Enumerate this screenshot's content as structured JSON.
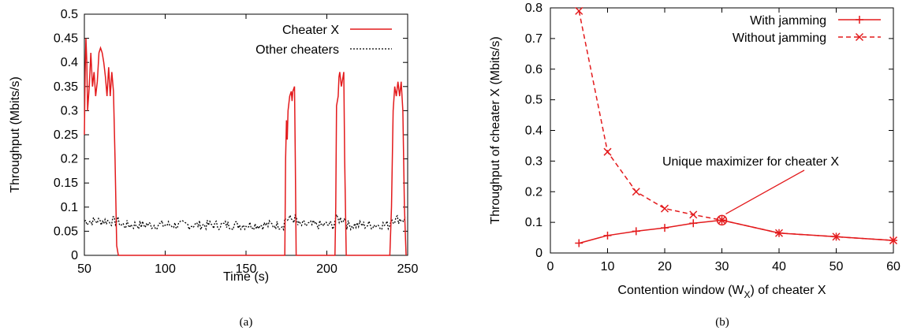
{
  "chart_data": [
    {
      "type": "line",
      "caption": "(a)",
      "xlabel": "Time (s)",
      "ylabel": "Throughput (Mbits/s)",
      "xlim": [
        50,
        250
      ],
      "ylim": [
        0,
        0.5
      ],
      "xticks": [
        "50",
        "100",
        "150",
        "200",
        "250"
      ],
      "yticks": [
        "0",
        "0.05",
        "0.1",
        "0.15",
        "0.2",
        "0.25",
        "0.3",
        "0.35",
        "0.4",
        "0.45",
        "0.5"
      ],
      "legend_position": "top-right",
      "series": [
        {
          "name": "Cheater X",
          "color": "#e31a1c",
          "style": "solid",
          "points": [
            [
              50,
              0.25
            ],
            [
              50.5,
              0.38
            ],
            [
              51,
              0.45
            ],
            [
              51.5,
              0.4
            ],
            [
              52,
              0.3
            ],
            [
              53,
              0.35
            ],
            [
              54,
              0.42
            ],
            [
              55,
              0.35
            ],
            [
              56,
              0.38
            ],
            [
              57,
              0.33
            ],
            [
              58,
              0.36
            ],
            [
              59,
              0.42
            ],
            [
              60,
              0.43
            ],
            [
              61,
              0.42
            ],
            [
              62,
              0.4
            ],
            [
              63,
              0.37
            ],
            [
              64,
              0.33
            ],
            [
              65,
              0.39
            ],
            [
              66,
              0.33
            ],
            [
              67,
              0.38
            ],
            [
              68,
              0.34
            ],
            [
              69,
              0.2
            ],
            [
              70,
              0.02
            ],
            [
              71,
              0
            ],
            [
              174,
              0
            ],
            [
              174.5,
              0.2
            ],
            [
              175,
              0.28
            ],
            [
              175.5,
              0.24
            ],
            [
              176,
              0.3
            ],
            [
              177,
              0.33
            ],
            [
              178,
              0.34
            ],
            [
              178.5,
              0.32
            ],
            [
              179,
              0.34
            ],
            [
              180,
              0.35
            ],
            [
              180.5,
              0.2
            ],
            [
              181,
              0
            ],
            [
              205,
              0
            ],
            [
              205.5,
              0.1
            ],
            [
              206,
              0.31
            ],
            [
              207,
              0.33
            ],
            [
              207.5,
              0.37
            ],
            [
              208,
              0.38
            ],
            [
              209,
              0.35
            ],
            [
              210,
              0.37
            ],
            [
              210.5,
              0.38
            ],
            [
              211,
              0.2
            ],
            [
              212,
              0
            ],
            [
              239,
              0
            ],
            [
              240,
              0.1
            ],
            [
              241,
              0.3
            ],
            [
              242,
              0.35
            ],
            [
              243,
              0.33
            ],
            [
              244,
              0.36
            ],
            [
              245,
              0.33
            ],
            [
              246,
              0.36
            ],
            [
              247,
              0.3
            ],
            [
              247.5,
              0.2
            ],
            [
              248,
              0.1
            ],
            [
              249,
              0
            ]
          ]
        },
        {
          "name": "Other cheaters",
          "color": "#000000",
          "style": "dotted",
          "mean": 0.063,
          "x_start": 50,
          "x_end": 249
        }
      ]
    },
    {
      "type": "line",
      "caption": "(b)",
      "xlabel": "Contention window (W_X) of cheater X",
      "xlabel_main": "Contention window (W",
      "xlabel_sub": "X",
      "xlabel_tail": ") of cheater X",
      "ylabel": "Throughput of cheater X (Mbits/s)",
      "xlim": [
        0,
        60
      ],
      "ylim": [
        0,
        0.8
      ],
      "xticks": [
        "0",
        "10",
        "20",
        "30",
        "40",
        "50",
        "60"
      ],
      "yticks": [
        "0",
        "0.1",
        "0.2",
        "0.3",
        "0.4",
        "0.5",
        "0.6",
        "0.7",
        "0.8"
      ],
      "legend_position": "top-right",
      "annotation": {
        "text": "Unique maximizer for cheater X",
        "x": 30,
        "y": 0.107
      },
      "series": [
        {
          "name": "With jamming",
          "color": "#e31a1c",
          "style": "solid",
          "marker": "plus",
          "x": [
            5,
            10,
            15,
            20,
            25,
            30,
            40,
            50,
            60
          ],
          "y": [
            0.032,
            0.057,
            0.071,
            0.082,
            0.097,
            0.107,
            0.065,
            0.053,
            0.041
          ]
        },
        {
          "name": "Without jamming",
          "color": "#e31a1c",
          "style": "dashed",
          "marker": "cross",
          "x": [
            5,
            10,
            15,
            20,
            25,
            30,
            40,
            50,
            60
          ],
          "y": [
            0.79,
            0.33,
            0.2,
            0.145,
            0.125,
            0.107,
            0.065,
            0.053,
            0.041
          ]
        }
      ]
    }
  ]
}
